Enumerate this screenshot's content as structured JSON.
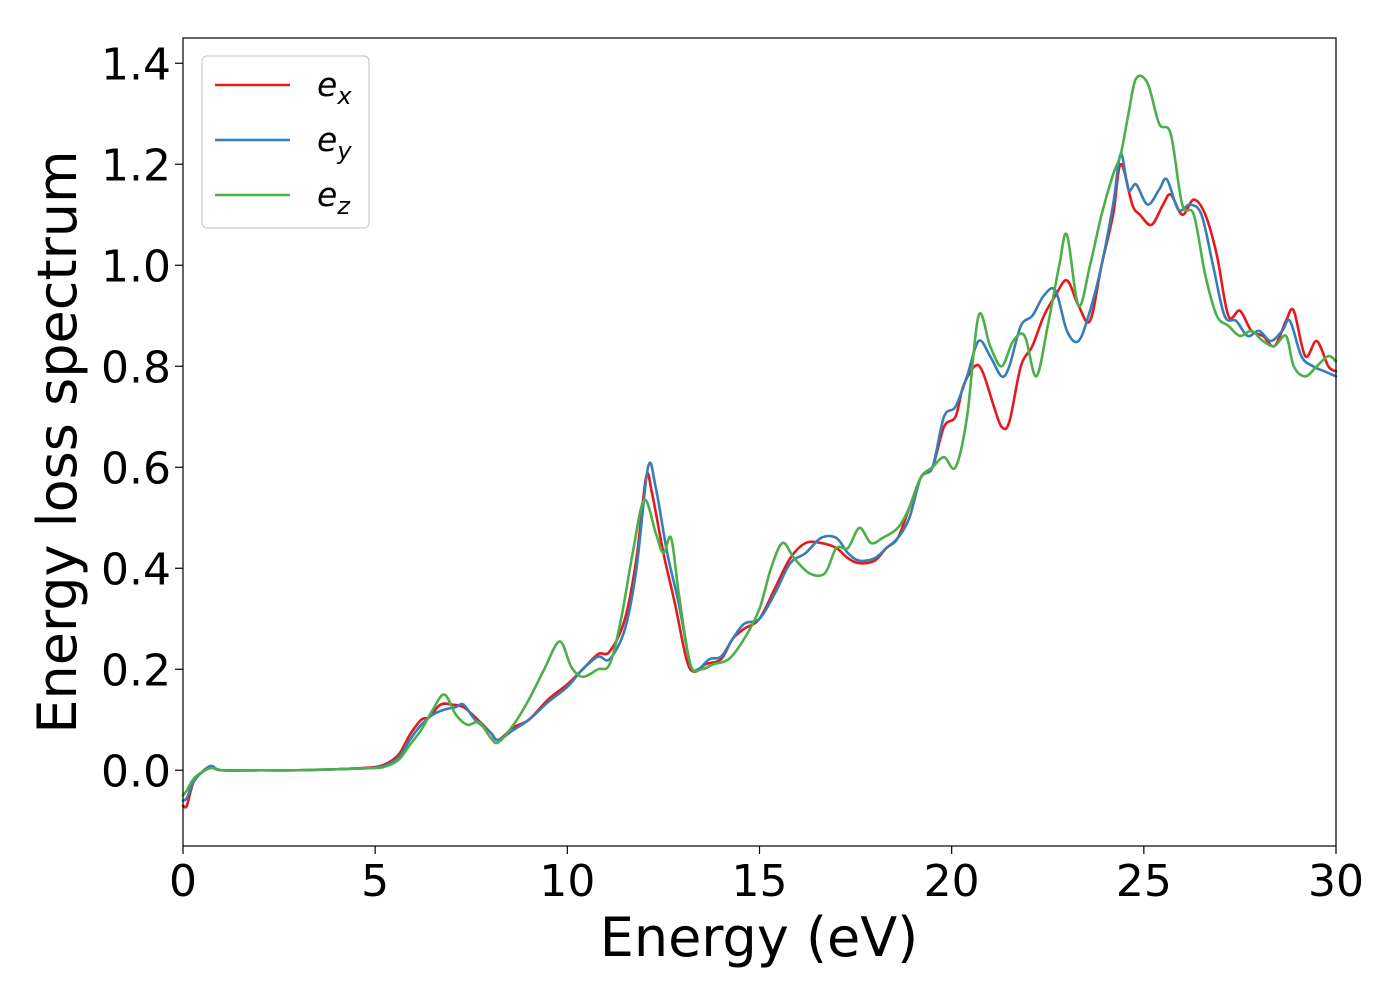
{
  "chart_data": {
    "type": "line",
    "title": "",
    "xlabel": "Energy (eV)",
    "ylabel": "Energy loss spectrum",
    "xlim": [
      0,
      30
    ],
    "ylim": [
      -0.15,
      1.45
    ],
    "grid": false,
    "legend_position": "top-left",
    "x_ticks": [
      0,
      5,
      10,
      15,
      20,
      25,
      30
    ],
    "x_tick_labels": [
      "0",
      "5",
      "10",
      "15",
      "20",
      "25",
      "30"
    ],
    "y_ticks": [
      0.0,
      0.2,
      0.4,
      0.6,
      0.8,
      1.0,
      1.2,
      1.4
    ],
    "y_tick_labels": [
      "0.0",
      "0.2",
      "0.4",
      "0.6",
      "0.8",
      "1.0",
      "1.2",
      "1.4"
    ],
    "series": [
      {
        "name": "e_x",
        "legend_base": "e",
        "legend_sub": "x",
        "color": "#e41a1c",
        "points": [
          [
            0,
            -0.07
          ],
          [
            0.1,
            -0.07
          ],
          [
            0.3,
            -0.02
          ],
          [
            0.7,
            0.005
          ],
          [
            1,
            0
          ],
          [
            2,
            0
          ],
          [
            3,
            0
          ],
          [
            4,
            0.002
          ],
          [
            4.8,
            0.005
          ],
          [
            5.2,
            0.01
          ],
          [
            5.6,
            0.03
          ],
          [
            5.9,
            0.07
          ],
          [
            6.2,
            0.1
          ],
          [
            6.4,
            0.105
          ],
          [
            6.7,
            0.13
          ],
          [
            7,
            0.13
          ],
          [
            7.3,
            0.125
          ],
          [
            7.6,
            0.105
          ],
          [
            8,
            0.075
          ],
          [
            8.2,
            0.06
          ],
          [
            8.6,
            0.085
          ],
          [
            9,
            0.1
          ],
          [
            9.5,
            0.14
          ],
          [
            10,
            0.17
          ],
          [
            10.4,
            0.2
          ],
          [
            10.8,
            0.23
          ],
          [
            11.1,
            0.235
          ],
          [
            11.5,
            0.3
          ],
          [
            11.8,
            0.42
          ],
          [
            12.05,
            0.58
          ],
          [
            12.2,
            0.55
          ],
          [
            12.5,
            0.43
          ],
          [
            12.8,
            0.33
          ],
          [
            13.1,
            0.22
          ],
          [
            13.3,
            0.195
          ],
          [
            13.6,
            0.21
          ],
          [
            14,
            0.22
          ],
          [
            14.3,
            0.26
          ],
          [
            14.6,
            0.28
          ],
          [
            15,
            0.3
          ],
          [
            15.4,
            0.36
          ],
          [
            15.8,
            0.42
          ],
          [
            16.2,
            0.45
          ],
          [
            16.6,
            0.45
          ],
          [
            17,
            0.44
          ],
          [
            17.3,
            0.42
          ],
          [
            17.6,
            0.41
          ],
          [
            18,
            0.415
          ],
          [
            18.3,
            0.44
          ],
          [
            18.6,
            0.46
          ],
          [
            18.9,
            0.52
          ],
          [
            19.2,
            0.58
          ],
          [
            19.5,
            0.6
          ],
          [
            19.8,
            0.68
          ],
          [
            20.1,
            0.7
          ],
          [
            20.3,
            0.76
          ],
          [
            20.6,
            0.8
          ],
          [
            20.8,
            0.79
          ],
          [
            21.1,
            0.72
          ],
          [
            21.3,
            0.68
          ],
          [
            21.5,
            0.69
          ],
          [
            21.8,
            0.8
          ],
          [
            22.1,
            0.84
          ],
          [
            22.4,
            0.9
          ],
          [
            22.7,
            0.94
          ],
          [
            23,
            0.97
          ],
          [
            23.3,
            0.92
          ],
          [
            23.6,
            0.89
          ],
          [
            23.9,
            1.0
          ],
          [
            24.2,
            1.1
          ],
          [
            24.4,
            1.2
          ],
          [
            24.7,
            1.12
          ],
          [
            24.9,
            1.1
          ],
          [
            25.2,
            1.08
          ],
          [
            25.5,
            1.12
          ],
          [
            25.7,
            1.14
          ],
          [
            26,
            1.1
          ],
          [
            26.3,
            1.13
          ],
          [
            26.6,
            1.1
          ],
          [
            26.9,
            1.02
          ],
          [
            27.2,
            0.9
          ],
          [
            27.5,
            0.91
          ],
          [
            27.8,
            0.87
          ],
          [
            28.1,
            0.86
          ],
          [
            28.4,
            0.84
          ],
          [
            28.7,
            0.89
          ],
          [
            28.9,
            0.91
          ],
          [
            29.2,
            0.82
          ],
          [
            29.5,
            0.85
          ],
          [
            29.8,
            0.8
          ],
          [
            30,
            0.79
          ]
        ]
      },
      {
        "name": "e_y",
        "legend_base": "e",
        "legend_sub": "y",
        "color": "#377eb8",
        "points": [
          [
            0,
            -0.06
          ],
          [
            0.1,
            -0.055
          ],
          [
            0.3,
            -0.02
          ],
          [
            0.7,
            0.008
          ],
          [
            1,
            0
          ],
          [
            2,
            0
          ],
          [
            3,
            0
          ],
          [
            4,
            0.002
          ],
          [
            4.8,
            0.004
          ],
          [
            5.2,
            0.008
          ],
          [
            5.6,
            0.025
          ],
          [
            5.9,
            0.06
          ],
          [
            6.2,
            0.09
          ],
          [
            6.5,
            0.11
          ],
          [
            6.8,
            0.12
          ],
          [
            7.1,
            0.125
          ],
          [
            7.3,
            0.13
          ],
          [
            7.6,
            0.1
          ],
          [
            8,
            0.075
          ],
          [
            8.2,
            0.06
          ],
          [
            8.6,
            0.08
          ],
          [
            9,
            0.1
          ],
          [
            9.5,
            0.135
          ],
          [
            10,
            0.165
          ],
          [
            10.4,
            0.2
          ],
          [
            10.8,
            0.225
          ],
          [
            11.1,
            0.22
          ],
          [
            11.5,
            0.28
          ],
          [
            11.8,
            0.4
          ],
          [
            12.1,
            0.6
          ],
          [
            12.3,
            0.56
          ],
          [
            12.6,
            0.43
          ],
          [
            12.9,
            0.33
          ],
          [
            13.2,
            0.21
          ],
          [
            13.4,
            0.2
          ],
          [
            13.7,
            0.22
          ],
          [
            14,
            0.225
          ],
          [
            14.3,
            0.26
          ],
          [
            14.6,
            0.29
          ],
          [
            15,
            0.3
          ],
          [
            15.4,
            0.35
          ],
          [
            15.8,
            0.41
          ],
          [
            16.2,
            0.43
          ],
          [
            16.6,
            0.46
          ],
          [
            17,
            0.46
          ],
          [
            17.3,
            0.43
          ],
          [
            17.6,
            0.415
          ],
          [
            18,
            0.42
          ],
          [
            18.3,
            0.44
          ],
          [
            18.6,
            0.46
          ],
          [
            18.9,
            0.5
          ],
          [
            19.2,
            0.58
          ],
          [
            19.5,
            0.6
          ],
          [
            19.8,
            0.7
          ],
          [
            20.1,
            0.72
          ],
          [
            20.4,
            0.78
          ],
          [
            20.7,
            0.85
          ],
          [
            21,
            0.82
          ],
          [
            21.3,
            0.78
          ],
          [
            21.5,
            0.8
          ],
          [
            21.8,
            0.88
          ],
          [
            22.1,
            0.9
          ],
          [
            22.4,
            0.94
          ],
          [
            22.7,
            0.95
          ],
          [
            23,
            0.87
          ],
          [
            23.3,
            0.85
          ],
          [
            23.6,
            0.91
          ],
          [
            23.9,
            1.0
          ],
          [
            24.2,
            1.12
          ],
          [
            24.4,
            1.22
          ],
          [
            24.6,
            1.15
          ],
          [
            24.8,
            1.16
          ],
          [
            25.1,
            1.12
          ],
          [
            25.4,
            1.15
          ],
          [
            25.6,
            1.17
          ],
          [
            25.9,
            1.11
          ],
          [
            26.2,
            1.12
          ],
          [
            26.5,
            1.1
          ],
          [
            26.8,
            1.0
          ],
          [
            27.1,
            0.9
          ],
          [
            27.4,
            0.89
          ],
          [
            27.7,
            0.86
          ],
          [
            28,
            0.87
          ],
          [
            28.3,
            0.85
          ],
          [
            28.6,
            0.87
          ],
          [
            28.8,
            0.89
          ],
          [
            29.1,
            0.82
          ],
          [
            29.4,
            0.8
          ],
          [
            29.7,
            0.79
          ],
          [
            30,
            0.78
          ]
        ]
      },
      {
        "name": "e_z",
        "legend_base": "e",
        "legend_sub": "z",
        "color": "#4daf4a",
        "points": [
          [
            0,
            -0.05
          ],
          [
            0.1,
            -0.04
          ],
          [
            0.3,
            -0.015
          ],
          [
            0.7,
            0.004
          ],
          [
            1,
            0
          ],
          [
            2,
            0
          ],
          [
            3,
            0
          ],
          [
            4,
            0.002
          ],
          [
            4.8,
            0.004
          ],
          [
            5.2,
            0.006
          ],
          [
            5.6,
            0.02
          ],
          [
            5.9,
            0.05
          ],
          [
            6.2,
            0.08
          ],
          [
            6.5,
            0.12
          ],
          [
            6.8,
            0.15
          ],
          [
            7.1,
            0.11
          ],
          [
            7.4,
            0.09
          ],
          [
            7.7,
            0.095
          ],
          [
            8,
            0.065
          ],
          [
            8.2,
            0.055
          ],
          [
            8.6,
            0.09
          ],
          [
            9,
            0.14
          ],
          [
            9.4,
            0.2
          ],
          [
            9.8,
            0.255
          ],
          [
            10.1,
            0.205
          ],
          [
            10.4,
            0.185
          ],
          [
            10.8,
            0.2
          ],
          [
            11.1,
            0.21
          ],
          [
            11.4,
            0.3
          ],
          [
            11.7,
            0.43
          ],
          [
            12,
            0.535
          ],
          [
            12.3,
            0.47
          ],
          [
            12.5,
            0.43
          ],
          [
            12.7,
            0.46
          ],
          [
            12.9,
            0.35
          ],
          [
            13.2,
            0.21
          ],
          [
            13.5,
            0.2
          ],
          [
            13.8,
            0.21
          ],
          [
            14.2,
            0.22
          ],
          [
            14.6,
            0.26
          ],
          [
            15,
            0.32
          ],
          [
            15.3,
            0.4
          ],
          [
            15.6,
            0.45
          ],
          [
            15.9,
            0.42
          ],
          [
            16.3,
            0.39
          ],
          [
            16.7,
            0.39
          ],
          [
            17,
            0.44
          ],
          [
            17.3,
            0.44
          ],
          [
            17.6,
            0.48
          ],
          [
            17.9,
            0.45
          ],
          [
            18.2,
            0.46
          ],
          [
            18.6,
            0.48
          ],
          [
            18.9,
            0.52
          ],
          [
            19.2,
            0.58
          ],
          [
            19.5,
            0.6
          ],
          [
            19.8,
            0.62
          ],
          [
            20.1,
            0.6
          ],
          [
            20.4,
            0.7
          ],
          [
            20.7,
            0.9
          ],
          [
            21,
            0.84
          ],
          [
            21.3,
            0.8
          ],
          [
            21.6,
            0.85
          ],
          [
            21.9,
            0.86
          ],
          [
            22.2,
            0.78
          ],
          [
            22.5,
            0.88
          ],
          [
            22.8,
            1.0
          ],
          [
            23,
            1.06
          ],
          [
            23.3,
            0.92
          ],
          [
            23.6,
            1.0
          ],
          [
            23.9,
            1.1
          ],
          [
            24.2,
            1.18
          ],
          [
            24.4,
            1.22
          ],
          [
            24.6,
            1.3
          ],
          [
            24.8,
            1.37
          ],
          [
            25.1,
            1.36
          ],
          [
            25.4,
            1.28
          ],
          [
            25.7,
            1.26
          ],
          [
            26,
            1.12
          ],
          [
            26.3,
            1.1
          ],
          [
            26.6,
            0.98
          ],
          [
            26.9,
            0.9
          ],
          [
            27.2,
            0.88
          ],
          [
            27.5,
            0.86
          ],
          [
            27.8,
            0.87
          ],
          [
            28.1,
            0.85
          ],
          [
            28.4,
            0.84
          ],
          [
            28.7,
            0.86
          ],
          [
            28.9,
            0.8
          ],
          [
            29.2,
            0.78
          ],
          [
            29.5,
            0.8
          ],
          [
            29.8,
            0.82
          ],
          [
            30,
            0.81
          ]
        ]
      }
    ]
  }
}
